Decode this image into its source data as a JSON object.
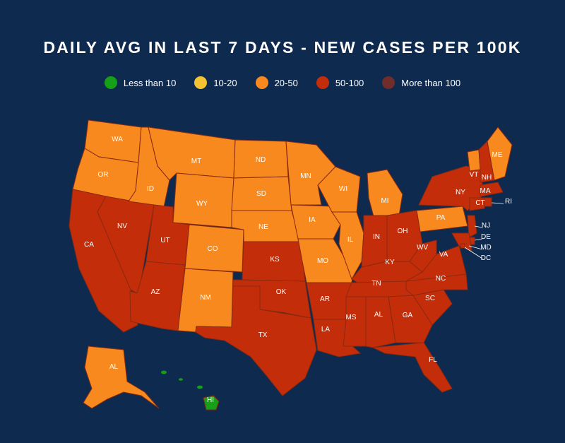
{
  "title": "DAILY AVG IN LAST 7 DAYS - NEW CASES PER 100K",
  "legend": [
    {
      "label": "Less than 10",
      "color": "#16a017"
    },
    {
      "label": "10-20",
      "color": "#f5c232"
    },
    {
      "label": "20-50",
      "color": "#f7891f"
    },
    {
      "label": "50-100",
      "color": "#c42d0a"
    },
    {
      "label": "More than 100",
      "color": "#6f2e2b"
    }
  ],
  "colors": {
    "g": "#16a017",
    "y": "#f5c232",
    "o": "#f7891f",
    "r": "#c42d0a",
    "m": "#6f2e2b"
  },
  "states": [
    {
      "abbr": "WA",
      "cat": "20-50"
    },
    {
      "abbr": "OR",
      "cat": "20-50"
    },
    {
      "abbr": "CA",
      "cat": "50-100"
    },
    {
      "abbr": "NV",
      "cat": "50-100"
    },
    {
      "abbr": "ID",
      "cat": "20-50"
    },
    {
      "abbr": "MT",
      "cat": "20-50"
    },
    {
      "abbr": "WY",
      "cat": "20-50"
    },
    {
      "abbr": "UT",
      "cat": "50-100"
    },
    {
      "abbr": "AZ",
      "cat": "50-100"
    },
    {
      "abbr": "CO",
      "cat": "20-50"
    },
    {
      "abbr": "NM",
      "cat": "20-50"
    },
    {
      "abbr": "ND",
      "cat": "20-50"
    },
    {
      "abbr": "SD",
      "cat": "20-50"
    },
    {
      "abbr": "NE",
      "cat": "20-50"
    },
    {
      "abbr": "KS",
      "cat": "50-100"
    },
    {
      "abbr": "OK",
      "cat": "50-100"
    },
    {
      "abbr": "TX",
      "cat": "50-100"
    },
    {
      "abbr": "MN",
      "cat": "20-50"
    },
    {
      "abbr": "IA",
      "cat": "20-50"
    },
    {
      "abbr": "MO",
      "cat": "20-50"
    },
    {
      "abbr": "AR",
      "cat": "50-100"
    },
    {
      "abbr": "LA",
      "cat": "50-100"
    },
    {
      "abbr": "WI",
      "cat": "20-50"
    },
    {
      "abbr": "IL",
      "cat": "20-50"
    },
    {
      "abbr": "MI",
      "cat": "20-50"
    },
    {
      "abbr": "IN",
      "cat": "50-100"
    },
    {
      "abbr": "OH",
      "cat": "50-100"
    },
    {
      "abbr": "KY",
      "cat": "50-100"
    },
    {
      "abbr": "TN",
      "cat": "50-100"
    },
    {
      "abbr": "MS",
      "cat": "50-100"
    },
    {
      "abbr": "AL",
      "cat": "50-100"
    },
    {
      "abbr": "GA",
      "cat": "50-100"
    },
    {
      "abbr": "FL",
      "cat": "50-100"
    },
    {
      "abbr": "SC",
      "cat": "50-100"
    },
    {
      "abbr": "NC",
      "cat": "50-100"
    },
    {
      "abbr": "VA",
      "cat": "50-100"
    },
    {
      "abbr": "WV",
      "cat": "50-100"
    },
    {
      "abbr": "PA",
      "cat": "20-50"
    },
    {
      "abbr": "NY",
      "cat": "50-100"
    },
    {
      "abbr": "VT",
      "cat": "20-50"
    },
    {
      "abbr": "NH",
      "cat": "50-100"
    },
    {
      "abbr": "ME",
      "cat": "20-50"
    },
    {
      "abbr": "MA",
      "cat": "50-100"
    },
    {
      "abbr": "CT",
      "cat": "50-100"
    },
    {
      "abbr": "RI",
      "cat": "50-100"
    },
    {
      "abbr": "NJ",
      "cat": "50-100"
    },
    {
      "abbr": "DE",
      "cat": "50-100"
    },
    {
      "abbr": "MD",
      "cat": "50-100"
    },
    {
      "abbr": "DC",
      "cat": "50-100"
    },
    {
      "abbr": "AK",
      "label": "AL",
      "cat": "20-50"
    },
    {
      "abbr": "HI",
      "cat": "Less than 10"
    }
  ]
}
